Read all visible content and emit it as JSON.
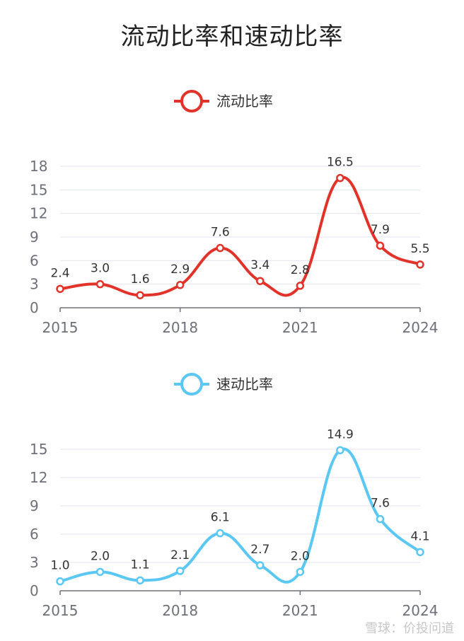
{
  "title": "流动比率和速动比率",
  "watermark": "雪球：价投问道",
  "chart_data": [
    {
      "type": "line",
      "name": "流动比率",
      "color": "#e2332b",
      "x": [
        2015,
        2016,
        2017,
        2018,
        2019,
        2020,
        2021,
        2022,
        2023,
        2024
      ],
      "values": [
        2.4,
        3.0,
        1.6,
        2.9,
        7.6,
        3.4,
        2.8,
        16.5,
        7.9,
        5.5
      ],
      "x_ticks": [
        "2015",
        "2018",
        "2021",
        "2024"
      ],
      "y_ticks": [
        "0",
        "3",
        "6",
        "9",
        "12",
        "15",
        "18"
      ],
      "ylim": [
        0,
        18
      ],
      "legend": "top-center",
      "grid": true
    },
    {
      "type": "line",
      "name": "速动比率",
      "color": "#5ac8f2",
      "x": [
        2015,
        2016,
        2017,
        2018,
        2019,
        2020,
        2021,
        2022,
        2023,
        2024
      ],
      "values": [
        1.0,
        2.0,
        1.1,
        2.1,
        6.1,
        2.7,
        2.0,
        14.9,
        7.6,
        4.1
      ],
      "x_ticks": [
        "2015",
        "2018",
        "2021",
        "2024"
      ],
      "y_ticks": [
        "0",
        "3",
        "6",
        "9",
        "12",
        "15"
      ],
      "ylim": [
        0,
        15
      ],
      "legend": "top-center",
      "grid": true
    }
  ]
}
